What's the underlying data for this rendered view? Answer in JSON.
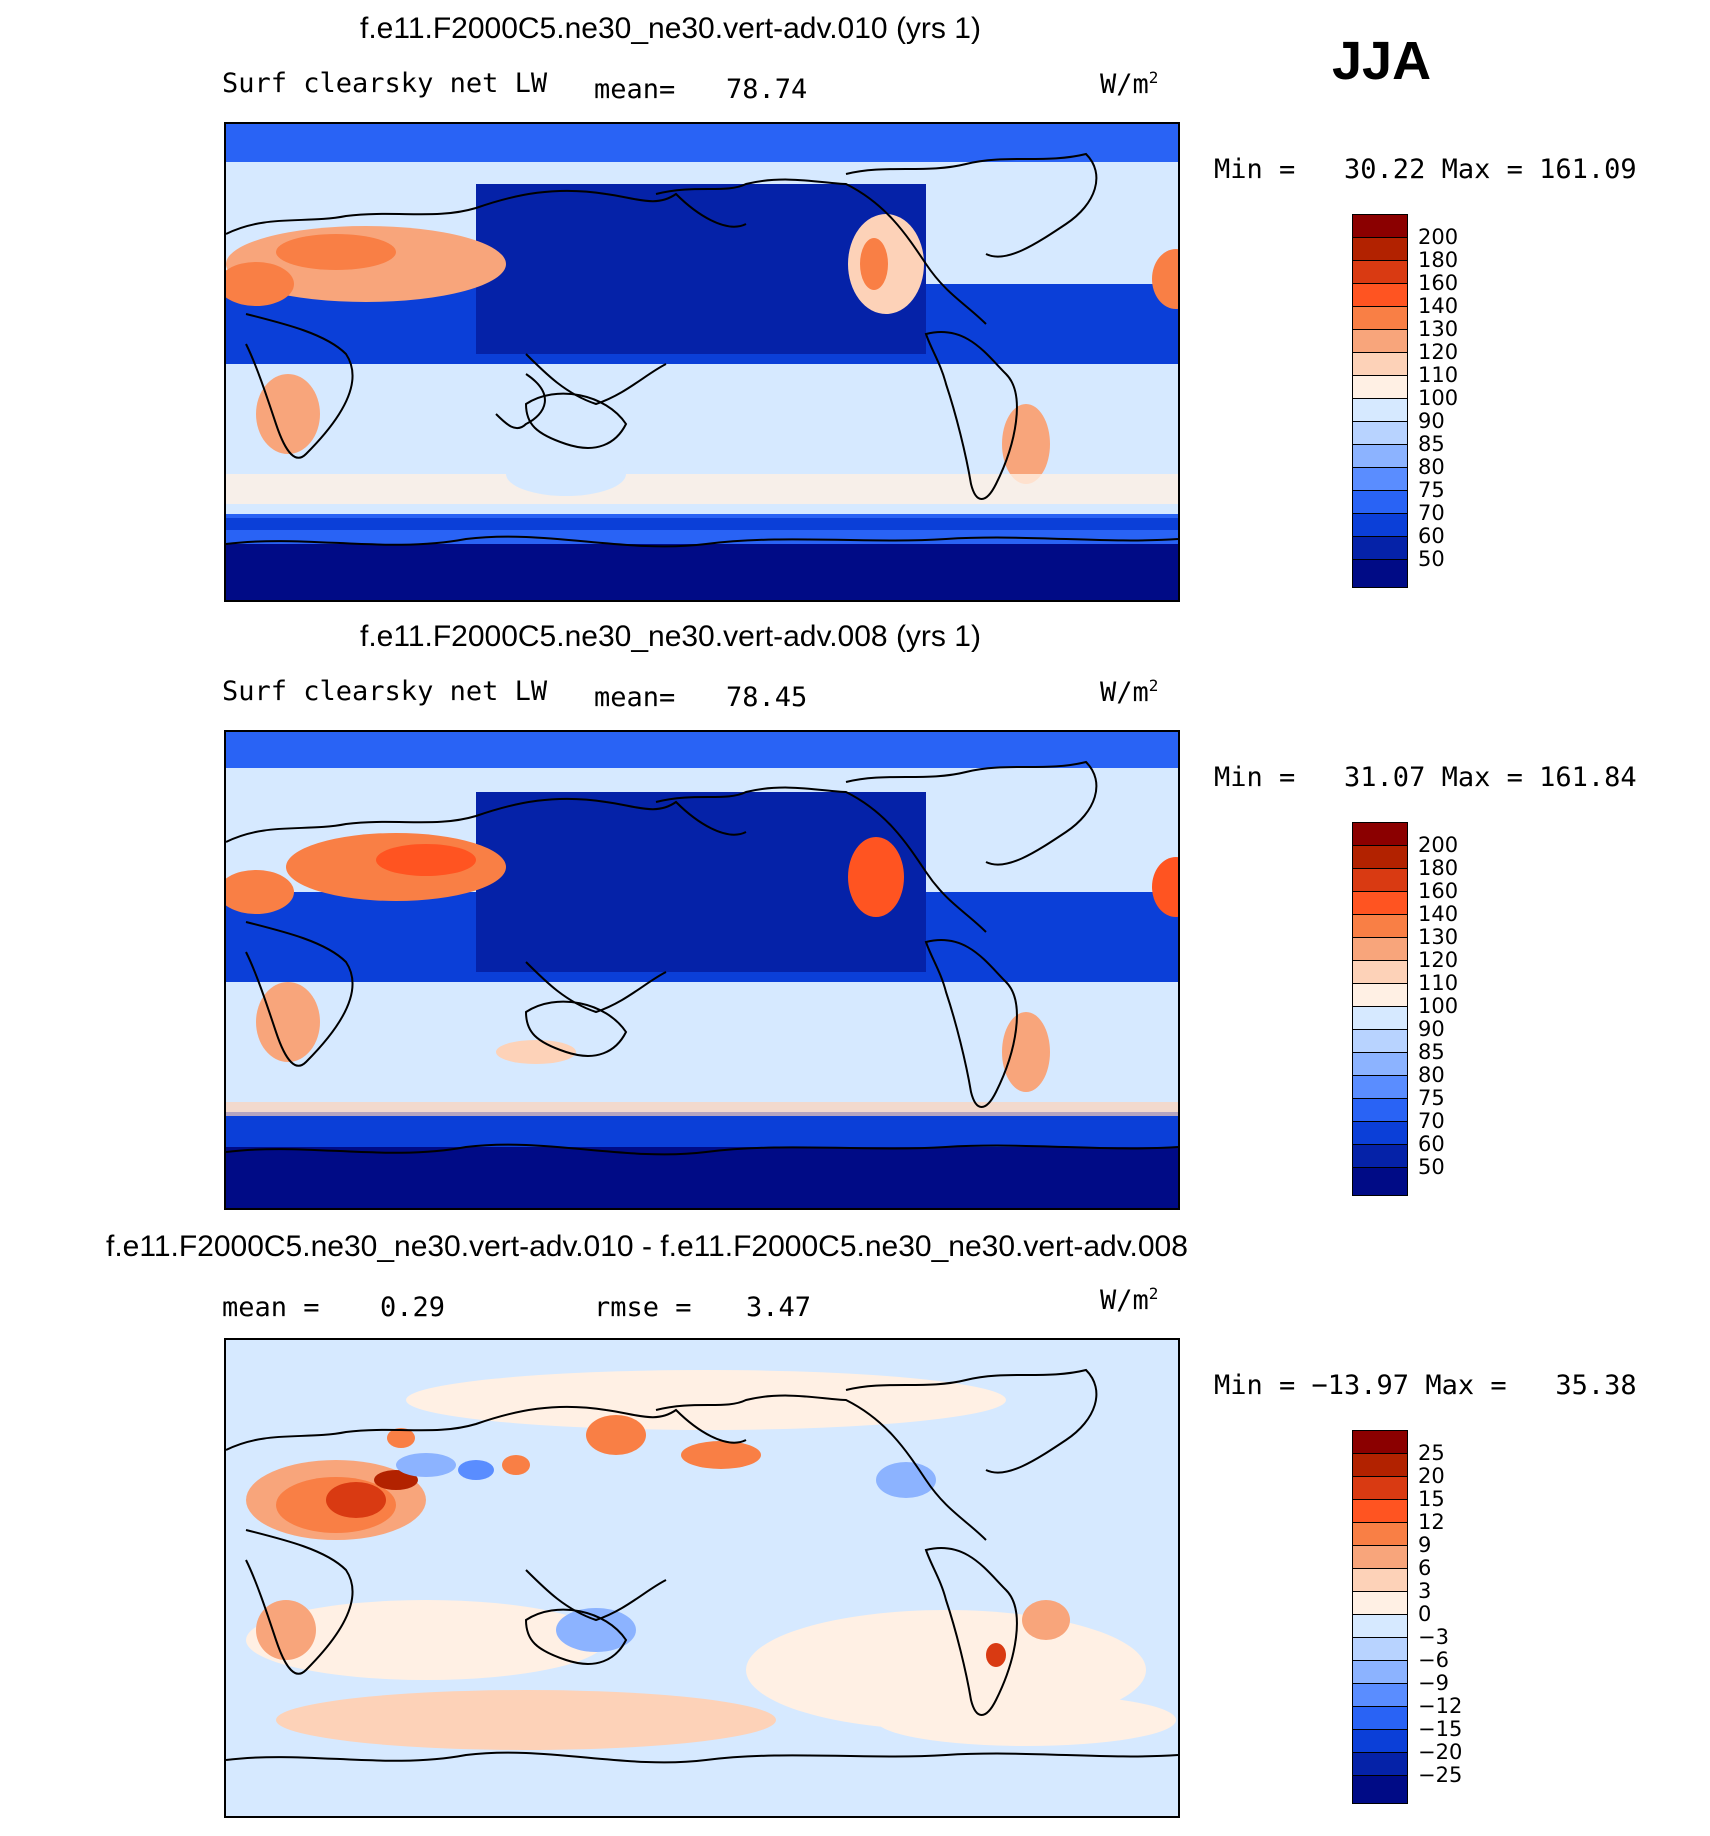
{
  "season": "JJA",
  "panels": [
    {
      "id": "panel-1",
      "title": "f.e11.F2000C5.ne30_ne30.vert-adv.010 (yrs 1)",
      "variable": "Surf clearsky net LW",
      "stat1_label": "mean=",
      "stat1_value": "78.74",
      "stat2_label": "",
      "stat2_value": "",
      "units_base": "W/m",
      "units_exp": "2",
      "minmax": "Min =   30.22 Max = 161.09",
      "colorbar": [
        "200",
        "180",
        "160",
        "140",
        "130",
        "120",
        "110",
        "100",
        "90",
        "85",
        "80",
        "75",
        "70",
        "60",
        "50"
      ]
    },
    {
      "id": "panel-2",
      "title": "f.e11.F2000C5.ne30_ne30.vert-adv.008 (yrs 1)",
      "variable": "Surf clearsky net LW",
      "stat1_label": "mean=",
      "stat1_value": "78.45",
      "stat2_label": "",
      "stat2_value": "",
      "units_base": "W/m",
      "units_exp": "2",
      "minmax": "Min =   31.07 Max = 161.84",
      "colorbar": [
        "200",
        "180",
        "160",
        "140",
        "130",
        "120",
        "110",
        "100",
        "90",
        "85",
        "80",
        "75",
        "70",
        "60",
        "50"
      ]
    },
    {
      "id": "panel-3",
      "title": "f.e11.F2000C5.ne30_ne30.vert-adv.010 - f.e11.F2000C5.ne30_ne30.vert-adv.008",
      "variable": "",
      "stat1_label": "mean =",
      "stat1_value": "0.29",
      "stat2_label": "rmse =",
      "stat2_value": "3.47",
      "units_base": "W/m",
      "units_exp": "2",
      "minmax": "Min = −13.97 Max =   35.38",
      "colorbar": [
        "25",
        "20",
        "15",
        "12",
        "9",
        "6",
        "3",
        "0",
        "−3",
        "−6",
        "−9",
        "−12",
        "−15",
        "−20",
        "−25"
      ]
    }
  ],
  "colors": {
    "abs_scale": [
      "#8b0000",
      "#b22200",
      "#d93a12",
      "#ff5421",
      "#f97f45",
      "#f8a57b",
      "#fdd2b8",
      "#fff0e4",
      "#d6e9ff",
      "#b8d3ff",
      "#8cb3ff",
      "#5a8dff",
      "#2963f5",
      "#0b3fd8",
      "#0522a8",
      "#000b86"
    ],
    "diff_scale": [
      "#8b0000",
      "#b22200",
      "#d93a12",
      "#ff5421",
      "#f97f45",
      "#f8a57b",
      "#fdd2b8",
      "#fff0e4",
      "#d6e9ff",
      "#b8d3ff",
      "#8cb3ff",
      "#5a8dff",
      "#2963f5",
      "#0b3fd8",
      "#0522a8",
      "#000b86"
    ]
  }
}
